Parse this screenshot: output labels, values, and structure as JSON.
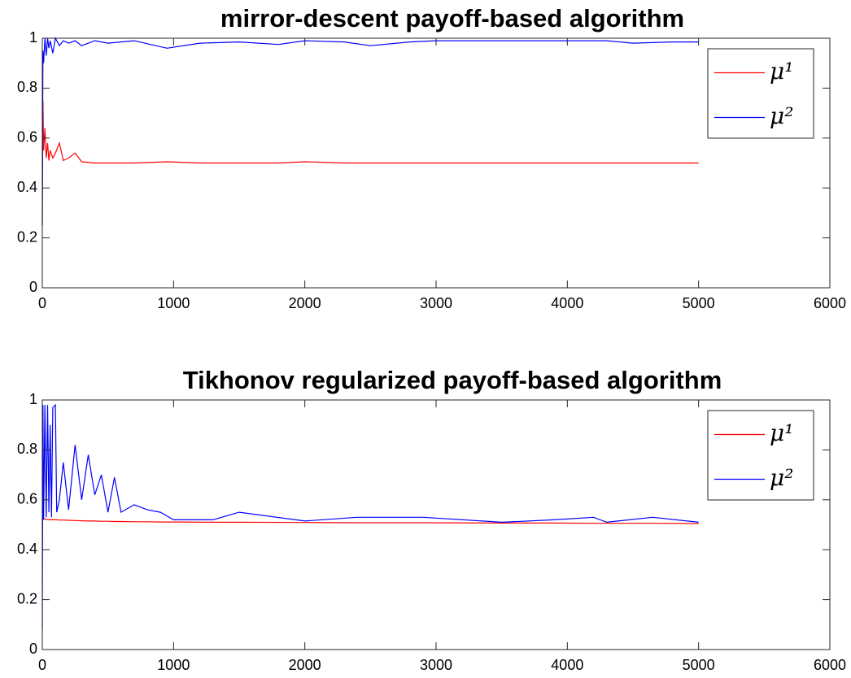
{
  "chart_data": [
    {
      "type": "line",
      "title": "mirror-descent payoff-based algorithm",
      "x": [
        0,
        5,
        10,
        20,
        30,
        40,
        50,
        60,
        80,
        100,
        130,
        160,
        200,
        250,
        300,
        400,
        500,
        700,
        950,
        1200,
        1500,
        1800,
        2000,
        2300,
        2500,
        2800,
        3000,
        3500,
        4000,
        4300,
        4500,
        4800,
        5000
      ],
      "series": [
        {
          "name": "μ¹",
          "color": "#ff0000",
          "values": [
            0.25,
            0.75,
            0.55,
            0.64,
            0.52,
            0.58,
            0.51,
            0.55,
            0.52,
            0.54,
            0.58,
            0.51,
            0.52,
            0.54,
            0.505,
            0.5,
            0.5,
            0.5,
            0.505,
            0.5,
            0.5,
            0.5,
            0.505,
            0.5,
            0.5,
            0.5,
            0.5,
            0.5,
            0.5,
            0.5,
            0.5,
            0.5,
            0.5
          ]
        },
        {
          "name": "μ²",
          "color": "#0000ff",
          "values": [
            0.25,
            0.95,
            0.9,
            1,
            0.93,
            1,
            0.96,
            0.99,
            0.94,
            1,
            0.97,
            0.99,
            0.98,
            0.99,
            0.97,
            0.99,
            0.98,
            0.99,
            0.96,
            0.98,
            0.985,
            0.975,
            0.99,
            0.985,
            0.97,
            0.985,
            0.99,
            0.99,
            0.99,
            0.99,
            0.98,
            0.985,
            0.985
          ]
        }
      ],
      "xlim": [
        0,
        6000
      ],
      "xticks": [
        0,
        1000,
        2000,
        3000,
        4000,
        5000,
        6000
      ],
      "ylim": [
        0,
        1
      ],
      "yticks": [
        0,
        0.2,
        0.4,
        0.6,
        0.8,
        1
      ],
      "grid": false,
      "legend": "upper right"
    },
    {
      "type": "line",
      "title": "Tikhonov regularized payoff-based algorithm",
      "x": [
        0,
        5,
        10,
        20,
        30,
        40,
        50,
        60,
        70,
        80,
        100,
        110,
        130,
        160,
        200,
        250,
        300,
        350,
        400,
        450,
        500,
        550,
        600,
        700,
        800,
        900,
        1000,
        1300,
        1500,
        2000,
        2400,
        2900,
        3500,
        3900,
        4200,
        4300,
        4650,
        5000
      ],
      "series": [
        {
          "name": "μ¹",
          "color": "#ff0000",
          "values": [
            0.9,
            0.55,
            0.525,
            0.522,
            0.522,
            0.521,
            0.521,
            0.521,
            0.52,
            0.52,
            0.52,
            0.52,
            0.519,
            0.519,
            0.518,
            0.517,
            0.516,
            0.515,
            0.515,
            0.514,
            0.514,
            0.513,
            0.513,
            0.512,
            0.512,
            0.511,
            0.511,
            0.51,
            0.51,
            0.509,
            0.508,
            0.508,
            0.507,
            0.507,
            0.506,
            0.506,
            0.506,
            0.505
          ]
        },
        {
          "name": "μ²",
          "color": "#0000ff",
          "values": [
            0.08,
            0.98,
            0.52,
            0.98,
            0.53,
            0.98,
            0.55,
            0.9,
            0.53,
            0.97,
            0.98,
            0.55,
            0.6,
            0.75,
            0.56,
            0.82,
            0.6,
            0.78,
            0.62,
            0.7,
            0.55,
            0.69,
            0.55,
            0.58,
            0.56,
            0.55,
            0.52,
            0.52,
            0.55,
            0.515,
            0.53,
            0.53,
            0.51,
            0.52,
            0.53,
            0.51,
            0.53,
            0.51
          ]
        }
      ],
      "xlim": [
        0,
        6000
      ],
      "xticks": [
        0,
        1000,
        2000,
        3000,
        4000,
        5000,
        6000
      ],
      "ylim": [
        0,
        1
      ],
      "yticks": [
        0,
        0.2,
        0.4,
        0.6,
        0.8,
        1
      ],
      "grid": false,
      "legend": "upper right"
    }
  ]
}
